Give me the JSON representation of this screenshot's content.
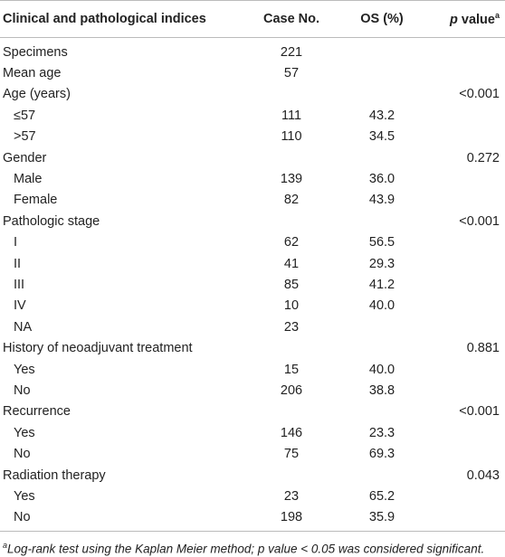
{
  "table": {
    "header": [
      "Clinical and pathological indices",
      "Case No.",
      "OS (%)",
      {
        "italic": "p",
        "text": " value",
        "sup": "a"
      }
    ],
    "rows": [
      {
        "sub": false,
        "cells": [
          "Specimens",
          "221",
          null,
          null
        ]
      },
      {
        "sub": false,
        "cells": [
          "Mean age",
          "57",
          null,
          null
        ]
      },
      {
        "sub": false,
        "cells": [
          "Age (years)",
          null,
          null,
          "<0.001"
        ]
      },
      {
        "sub": true,
        "cells": [
          "≤57",
          "111",
          "43.2",
          null
        ]
      },
      {
        "sub": true,
        "cells": [
          ">57",
          "110",
          "34.5",
          null
        ]
      },
      {
        "sub": false,
        "cells": [
          "Gender",
          null,
          null,
          "0.272"
        ]
      },
      {
        "sub": true,
        "cells": [
          "Male",
          "139",
          "36.0",
          null
        ]
      },
      {
        "sub": true,
        "cells": [
          "Female",
          "82",
          "43.9",
          null
        ]
      },
      {
        "sub": false,
        "cells": [
          "Pathologic stage",
          null,
          null,
          "<0.001"
        ]
      },
      {
        "sub": true,
        "cells": [
          "I",
          "62",
          "56.5",
          null
        ]
      },
      {
        "sub": true,
        "cells": [
          "II",
          "41",
          "29.3",
          null
        ]
      },
      {
        "sub": true,
        "cells": [
          "III",
          "85",
          "41.2",
          null
        ]
      },
      {
        "sub": true,
        "cells": [
          "IV",
          "10",
          "40.0",
          null
        ]
      },
      {
        "sub": true,
        "cells": [
          "NA",
          "23",
          null,
          null
        ]
      },
      {
        "sub": false,
        "cells": [
          "History of neoadjuvant treatment",
          null,
          null,
          "0.881"
        ]
      },
      {
        "sub": true,
        "cells": [
          "Yes",
          "15",
          "40.0",
          null
        ]
      },
      {
        "sub": true,
        "cells": [
          "No",
          "206",
          "38.8",
          null
        ]
      },
      {
        "sub": false,
        "cells": [
          "Recurrence",
          null,
          null,
          "<0.001"
        ]
      },
      {
        "sub": true,
        "cells": [
          "Yes",
          "146",
          "23.3",
          null
        ]
      },
      {
        "sub": true,
        "cells": [
          "No",
          "75",
          "69.3",
          null
        ]
      },
      {
        "sub": false,
        "cells": [
          "Radiation therapy",
          null,
          null,
          "0.043"
        ]
      },
      {
        "sub": true,
        "cells": [
          "Yes",
          "23",
          "65.2",
          null
        ]
      },
      {
        "sub": true,
        "cells": [
          "No",
          "198",
          "35.9",
          null
        ]
      }
    ],
    "footnote": {
      "mark": "a",
      "text": "Log-rank test using the Kaplan Meier method; p value < 0.05 was considered significant."
    }
  }
}
